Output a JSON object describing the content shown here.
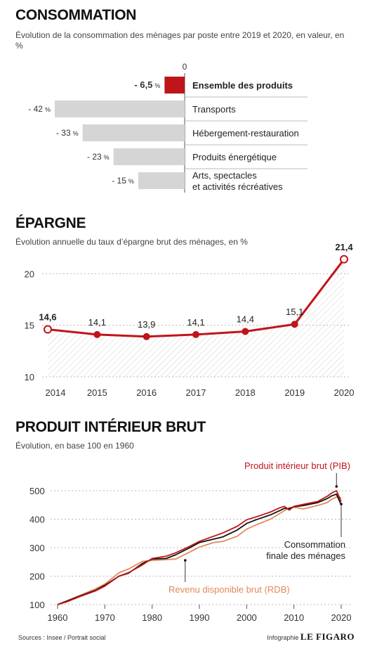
{
  "sections": {
    "consommation": {
      "title": "CONSOMMATION",
      "subtitle": "Évolution de la consommation des ménages par poste entre 2019 et 2020, en valeur, en %"
    },
    "epargne": {
      "title": "ÉPARGNE",
      "subtitle": "Évolution annuelle du taux d’épargne brut des ménages, en %"
    },
    "pib": {
      "title": "PRODUIT INTÉRIEUR BRUT",
      "subtitle": "Évolution, en base 100 en 1960"
    }
  },
  "footer": {
    "sources": "Sources : Insee / Portrait social",
    "infographie": "Infographie",
    "brand": "LE FIGARO"
  },
  "colors": {
    "red": "#c0141b",
    "gray_bar": "#d5d5d5",
    "rdb": "#e08a5c",
    "dark": "#111111"
  },
  "chart_data": [
    {
      "id": "consommation",
      "type": "bar",
      "orientation": "horizontal",
      "zero_label": "0",
      "categories": [
        "Ensemble des produits",
        "Transports",
        "Hébergement-restauration",
        "Produits énergétique",
        "Arts, spectacles et activités récréatives"
      ],
      "category_lines": [
        [
          "Ensemble des produits"
        ],
        [
          "Transports"
        ],
        [
          "Hébergement-restauration"
        ],
        [
          "Produits énergétique"
        ],
        [
          "Arts, spectacles",
          "et activités récréatives"
        ]
      ],
      "values": [
        -6.5,
        -42,
        -33,
        -23,
        -15
      ],
      "value_labels": [
        "- 6,5",
        "- 42",
        "- 33",
        "- 23",
        "- 15"
      ],
      "unit": "%",
      "highlight_index": 0
    },
    {
      "id": "epargne",
      "type": "line",
      "x": [
        "2014",
        "2015",
        "2016",
        "2017",
        "2018",
        "2019",
        "2020"
      ],
      "values": [
        14.6,
        14.1,
        13.9,
        14.1,
        14.4,
        15.1,
        21.4
      ],
      "value_labels": [
        "14,6",
        "14,1",
        "13,9",
        "14,1",
        "14,4",
        "15,1",
        "21,4"
      ],
      "bold_labels": [
        0,
        6
      ],
      "ylim": [
        10,
        22
      ],
      "yticks": [
        10,
        15,
        20
      ],
      "grid": true
    },
    {
      "id": "pib",
      "type": "line",
      "xlim": [
        1960,
        2020
      ],
      "ylim": [
        100,
        500
      ],
      "xticks": [
        1960,
        1970,
        1980,
        1990,
        2000,
        2010,
        2020
      ],
      "yticks": [
        100,
        200,
        300,
        400,
        500
      ],
      "grid": true,
      "series": [
        {
          "name": "Produit intérieur brut (PIB)",
          "color": "#c0141b",
          "x": [
            1960,
            1962,
            1965,
            1968,
            1970,
            1973,
            1975,
            1978,
            1980,
            1983,
            1985,
            1988,
            1990,
            1993,
            1995,
            1998,
            2000,
            2002,
            2005,
            2007,
            2008,
            2009,
            2010,
            2012,
            2015,
            2017,
            2018,
            2019,
            2020
          ],
          "values": [
            100,
            110,
            130,
            148,
            165,
            200,
            212,
            240,
            262,
            270,
            282,
            305,
            322,
            340,
            352,
            375,
            398,
            408,
            425,
            440,
            445,
            432,
            445,
            452,
            462,
            480,
            492,
            500,
            462
          ]
        },
        {
          "name": "Consommation finale des ménages",
          "color": "#111111",
          "x": [
            1960,
            1962,
            1965,
            1968,
            1970,
            1973,
            1975,
            1978,
            1980,
            1983,
            1985,
            1988,
            1990,
            1993,
            1995,
            1998,
            2000,
            2002,
            2005,
            2007,
            2008,
            2009,
            2010,
            2012,
            2015,
            2017,
            2018,
            2019,
            2020
          ],
          "values": [
            100,
            112,
            132,
            150,
            168,
            200,
            210,
            245,
            260,
            262,
            275,
            300,
            318,
            330,
            338,
            362,
            385,
            398,
            415,
            430,
            438,
            437,
            444,
            448,
            458,
            472,
            482,
            488,
            450
          ]
        },
        {
          "name": "Revenu disponible brut (RDB)",
          "color": "#e08a5c",
          "x": [
            1960,
            1962,
            1965,
            1968,
            1970,
            1973,
            1975,
            1978,
            1980,
            1983,
            1985,
            1988,
            1990,
            1993,
            1995,
            1998,
            2000,
            2002,
            2005,
            2007,
            2008,
            2009,
            2010,
            2012,
            2015,
            2017,
            2018,
            2019,
            2020
          ],
          "values": [
            100,
            114,
            134,
            155,
            172,
            212,
            225,
            252,
            255,
            258,
            260,
            285,
            302,
            318,
            322,
            340,
            365,
            380,
            400,
            420,
            430,
            440,
            442,
            436,
            448,
            458,
            470,
            478,
            475
          ]
        }
      ],
      "annotations": {
        "pib_label": "Produit intérieur brut (PIB)",
        "conso_label_lines": [
          "Consommation",
          "finale des ménages"
        ],
        "rdb_label": "Revenu disponible brut (RDB)"
      }
    }
  ]
}
